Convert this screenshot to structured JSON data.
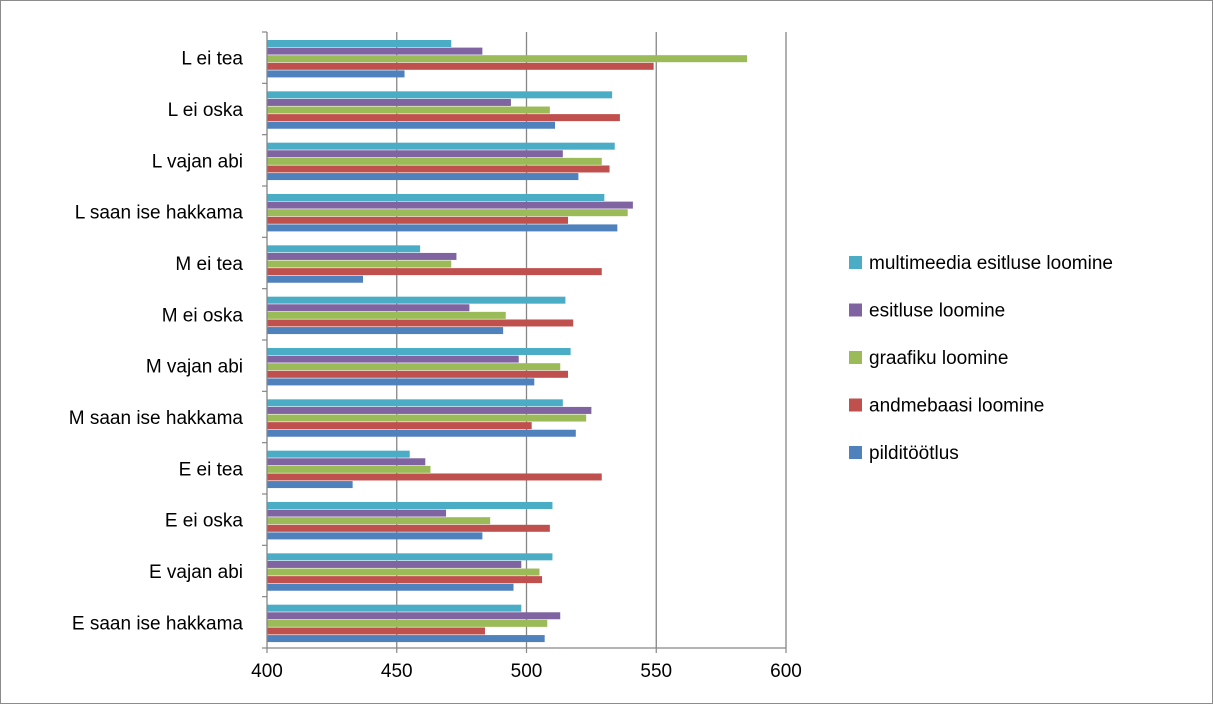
{
  "chart_data": {
    "type": "bar",
    "orientation": "horizontal",
    "categories": [
      "L ei tea",
      "L ei oska",
      "L vajan abi",
      "L saan ise hakkama",
      "M ei tea",
      "M ei oska",
      "M vajan abi",
      "M saan ise hakkama",
      "E ei tea",
      "E ei oska",
      "E vajan abi",
      "E saan ise hakkama"
    ],
    "series": [
      {
        "name": "multimeedia esitluse loomine",
        "color": "#4bacc6",
        "values": [
          471,
          533,
          534,
          530,
          459,
          515,
          517,
          514,
          455,
          510,
          510,
          498
        ]
      },
      {
        "name": "esitluse loomine",
        "color": "#8064a2",
        "values": [
          483,
          494,
          514,
          541,
          473,
          478,
          497,
          525,
          461,
          469,
          498,
          513
        ]
      },
      {
        "name": "graafiku loomine",
        "color": "#9bbb59",
        "values": [
          585,
          509,
          529,
          539,
          471,
          492,
          513,
          523,
          463,
          486,
          505,
          508
        ]
      },
      {
        "name": "andmebaasi loomine",
        "color": "#c0504d",
        "values": [
          549,
          536,
          532,
          516,
          529,
          518,
          516,
          502,
          529,
          509,
          506,
          484
        ]
      },
      {
        "name": "pilditöötlus",
        "color": "#4f81bd",
        "values": [
          453,
          511,
          520,
          535,
          437,
          491,
          503,
          519,
          433,
          483,
          495,
          507
        ]
      }
    ],
    "xlim": [
      400,
      600
    ],
    "x_ticks": [
      "400",
      "450",
      "500",
      "550",
      "600"
    ],
    "grid": "vertical",
    "legend_position": "right",
    "title": "",
    "xlabel": "",
    "ylabel": ""
  }
}
